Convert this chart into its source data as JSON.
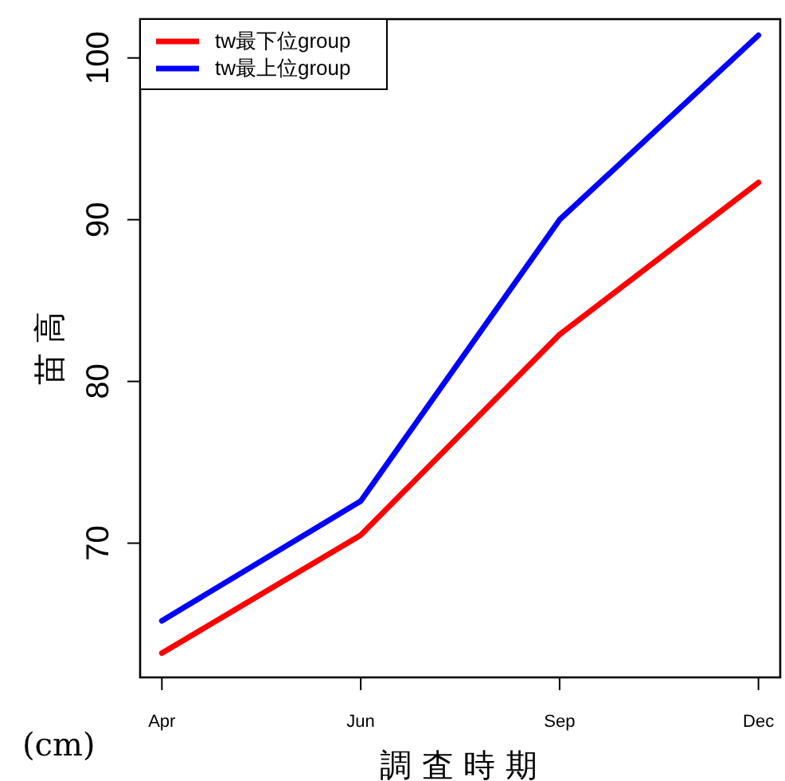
{
  "chart_data": {
    "type": "line",
    "xlabel": "調 査 時 期",
    "ylabel": "苗 高",
    "annotations": [
      "(cm)"
    ],
    "categories": [
      "Apr",
      "Jun",
      "Sep",
      "Dec"
    ],
    "series": [
      {
        "name": "tw最下位group",
        "color": "#ff0000",
        "values": [
          63.2,
          70.5,
          82.9,
          92.3
        ]
      },
      {
        "name": "tw最上位group",
        "color": "#0000ff",
        "values": [
          65.2,
          72.6,
          90.0,
          101.4
        ]
      }
    ],
    "ylim": [
      61.7,
      102.4
    ],
    "yticks": [
      70,
      80,
      90,
      100
    ],
    "legend": "top left",
    "grid": false
  }
}
